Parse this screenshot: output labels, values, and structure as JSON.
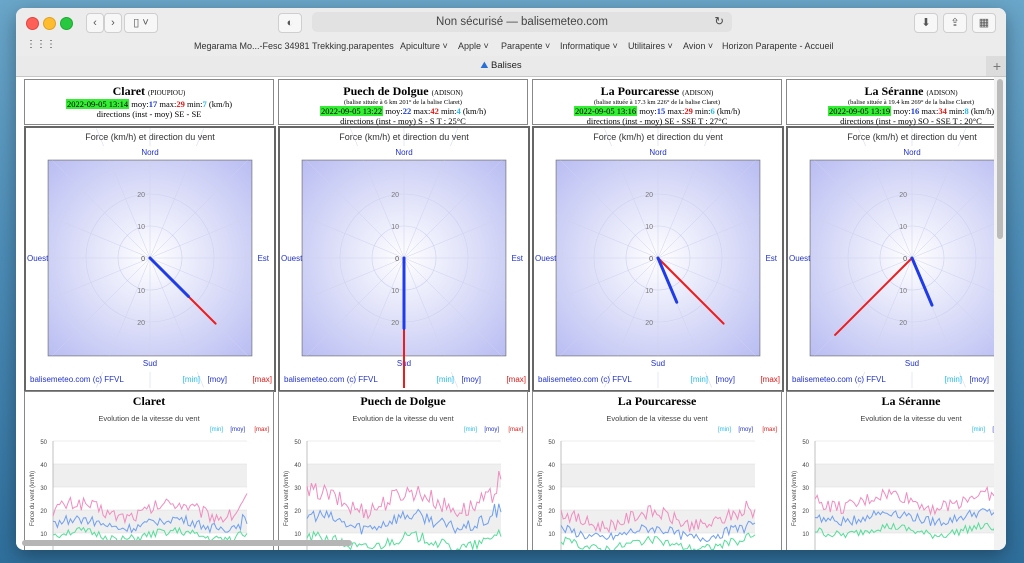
{
  "browser": {
    "url": "Non sécurisé — balisemeteo.com",
    "favorites": [
      "Megarama Mo...-Fesc 34981",
      "Trekking.parapentes",
      "Apiculture",
      "Apple",
      "Parapente",
      "Informatique",
      "Utilitaires",
      "Avion",
      "Horizon Parapente - Accueil"
    ],
    "tab_title": "Balises"
  },
  "legend": {
    "min": "[min]",
    "moy": "[moy]",
    "max": "[max]"
  },
  "labels": {
    "moy": "moy:",
    "max": "max:",
    "min": "min:",
    "kmh": "(km/h)"
  },
  "compass": {
    "title": "Force (km/h) et direction du vent",
    "nord": "Nord",
    "sud": "Sud",
    "est": "Est",
    "ouest": "Ouest",
    "ticks": [
      "0",
      "10",
      "20"
    ],
    "credit": "balisemeteo.com (c) FFVL"
  },
  "evo": {
    "title": "Evolution de la vitesse du vent",
    "ylabel": "Force du vent (km/h)",
    "yticks": [
      "50",
      "40",
      "30",
      "20",
      "10",
      "0"
    ]
  },
  "colors": {
    "moy": "#1f3ce8",
    "max": "#ee1c1c",
    "min": "#22c0ee",
    "ts_bg": "#33ee33",
    "evo_max": "#f08cc0",
    "evo_moy": "#6f9ff0",
    "evo_min": "#55dd99"
  },
  "stations": [
    {
      "name": "Claret",
      "network": "(PIOUPIOU)",
      "location": "",
      "timestamp": "2022-09-05 13:14",
      "moy": "17",
      "max": "29",
      "min": "7",
      "directions": "directions (inst - moy) SE - SE",
      "temp": "",
      "chart_title": "Claret",
      "wind": {
        "moy_dir_deg": 135,
        "moy_speed": 17,
        "max_dir_deg": 135,
        "max_speed": 29
      },
      "evo": {
        "max_base": 20,
        "moy_base": 14,
        "min_base": 9,
        "amp": 6
      }
    },
    {
      "name": "Puech de Dolgue",
      "network": "(ADISON)",
      "location": "(balise située à 6 km 201° de la balise Claret)",
      "timestamp": "2022-09-05 13:22",
      "moy": "22",
      "max": "42",
      "min": "4",
      "directions": "directions (inst - moy) S - S",
      "temp": "T : 25°C",
      "chart_title": "Puech de Dolgue",
      "wind": {
        "moy_dir_deg": 180,
        "moy_speed": 22,
        "max_dir_deg": 180,
        "max_speed": 42
      },
      "evo": {
        "max_base": 24,
        "moy_base": 15,
        "min_base": 6,
        "amp": 8
      }
    },
    {
      "name": "La Pourcaresse",
      "network": "(ADISON)",
      "location": "(balise située à 17.3 km 226° de la balise Claret)",
      "timestamp": "2022-09-05 13:16",
      "moy": "15",
      "max": "29",
      "min": "6",
      "directions": "directions (inst - moy) SE - SSE",
      "temp": "T : 27°C",
      "chart_title": "La Pourcaresse",
      "wind": {
        "moy_dir_deg": 157,
        "moy_speed": 15,
        "max_dir_deg": 135,
        "max_speed": 29
      },
      "evo": {
        "max_base": 16,
        "moy_base": 10,
        "min_base": 5,
        "amp": 6
      }
    },
    {
      "name": "La Séranne",
      "network": "(ADISON)",
      "location": "(balise située à 19.4 km 269° de la balise Claret)",
      "timestamp": "2022-09-05 13:19",
      "moy": "16",
      "max": "34",
      "min": "8",
      "directions": "directions (inst - moy) SO - SSE",
      "temp": "T : 20°C",
      "chart_title": "La Séranne",
      "wind": {
        "moy_dir_deg": 157,
        "moy_speed": 16,
        "max_dir_deg": 225,
        "max_speed": 34
      },
      "evo": {
        "max_base": 24,
        "moy_base": 17,
        "min_base": 11,
        "amp": 6
      }
    }
  ]
}
